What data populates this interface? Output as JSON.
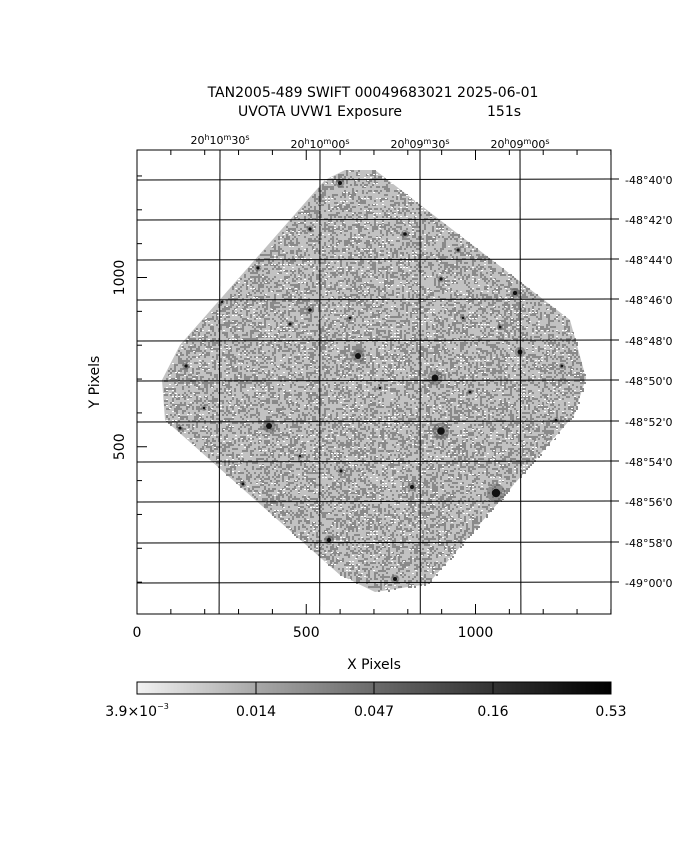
{
  "header": {
    "title_line1": "TAN2005-489 SWIFT 00049683021 2025-06-01",
    "title_line2": "UVOTA UVW1 Exposure",
    "exposure": "151s"
  },
  "plot": {
    "x_axis_label": "X Pixels",
    "y_axis_label": "Y Pixels",
    "x_ticks": [
      {
        "value": 0,
        "label": "0"
      },
      {
        "value": 500,
        "label": "500"
      },
      {
        "value": 1000,
        "label": "1000"
      }
    ],
    "y_ticks": [
      {
        "value": 500,
        "label": "500"
      },
      {
        "value": 1000,
        "label": "1000"
      }
    ],
    "ra_labels": [
      {
        "h": "20",
        "m": "10",
        "s": "30"
      },
      {
        "h": "20",
        "m": "10",
        "s": "00"
      },
      {
        "h": "20",
        "m": "09",
        "s": "30"
      },
      {
        "h": "20",
        "m": "09",
        "s": "00"
      }
    ],
    "dec_labels": [
      "-48°40'0",
      "-48°42'0",
      "-48°44'0",
      "-48°46'0",
      "-48°48'0",
      "-48°50'0",
      "-48°52'0",
      "-48°54'0",
      "-48°56'0",
      "-48°58'0",
      "-49°00'0"
    ]
  },
  "colorbar": {
    "tick_labels": [
      {
        "mantissa": "3.9×10",
        "exp": "−3"
      },
      {
        "mantissa": "0.014",
        "exp": ""
      },
      {
        "mantissa": "0.047",
        "exp": ""
      },
      {
        "mantissa": "0.16",
        "exp": ""
      },
      {
        "mantissa": "0.53",
        "exp": ""
      }
    ]
  }
}
